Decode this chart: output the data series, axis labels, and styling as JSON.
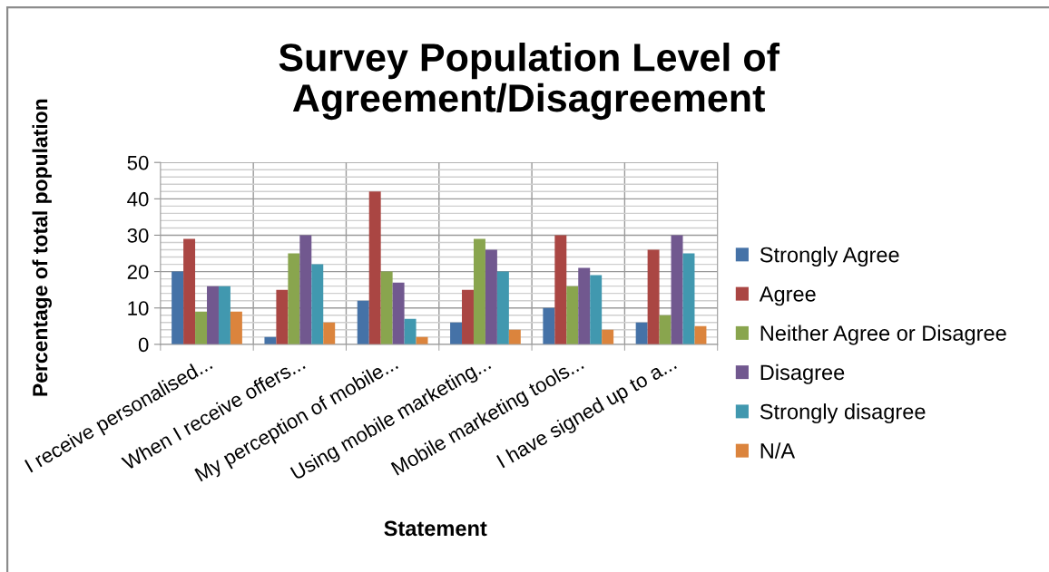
{
  "chart_data": {
    "type": "bar",
    "title": "Survey Population Level of\nAgreement/Disagreement",
    "xlabel": "Statement",
    "ylabel": "Percentage of total population",
    "categories": [
      "I receive personalised...",
      "When I receive offers...",
      "My perception of mobile...",
      "Using mobile marketing...",
      "Mobile marketing tools...",
      "I have signed up to a..."
    ],
    "series": [
      {
        "name": "Strongly Agree",
        "color": "#4572a7",
        "values": [
          20,
          2,
          12,
          6,
          10,
          6
        ]
      },
      {
        "name": "Agree",
        "color": "#aa4643",
        "values": [
          29,
          15,
          42,
          15,
          30,
          26
        ]
      },
      {
        "name": "Neither Agree or Disagree",
        "color": "#89a54e",
        "values": [
          9,
          25,
          20,
          29,
          16,
          8
        ]
      },
      {
        "name": "Disagree",
        "color": "#71588f",
        "values": [
          16,
          30,
          17,
          26,
          21,
          30
        ]
      },
      {
        "name": "Strongly disagree",
        "color": "#4198af",
        "values": [
          16,
          22,
          7,
          20,
          19,
          25
        ]
      },
      {
        "name": "N/A",
        "color": "#db843d",
        "values": [
          9,
          6,
          2,
          4,
          4,
          5
        ]
      }
    ],
    "ylim": [
      0,
      50
    ],
    "yticks": [
      0,
      {
        "value": 2,
        "label": null
      },
      {
        "value": 4,
        "label": null
      },
      {
        "value": 6,
        "label": null
      },
      {
        "value": 8,
        "label": null
      },
      10,
      {
        "value": 12,
        "label": null
      },
      {
        "value": 14,
        "label": null
      },
      {
        "value": 16,
        "label": null
      },
      {
        "value": 18,
        "label": null
      },
      20,
      {
        "value": 22,
        "label": null
      },
      {
        "value": 24,
        "label": null
      },
      {
        "value": 26,
        "label": null
      },
      {
        "value": 28,
        "label": null
      },
      30,
      {
        "value": 32,
        "label": null
      },
      {
        "value": 34,
        "label": null
      },
      {
        "value": 36,
        "label": null
      },
      {
        "value": 38,
        "label": null
      },
      40,
      {
        "value": 42,
        "label": null
      },
      {
        "value": 44,
        "label": null
      },
      {
        "value": 46,
        "label": null
      },
      {
        "value": 48,
        "label": null
      },
      50
    ],
    "grid": true,
    "legend": "right"
  }
}
